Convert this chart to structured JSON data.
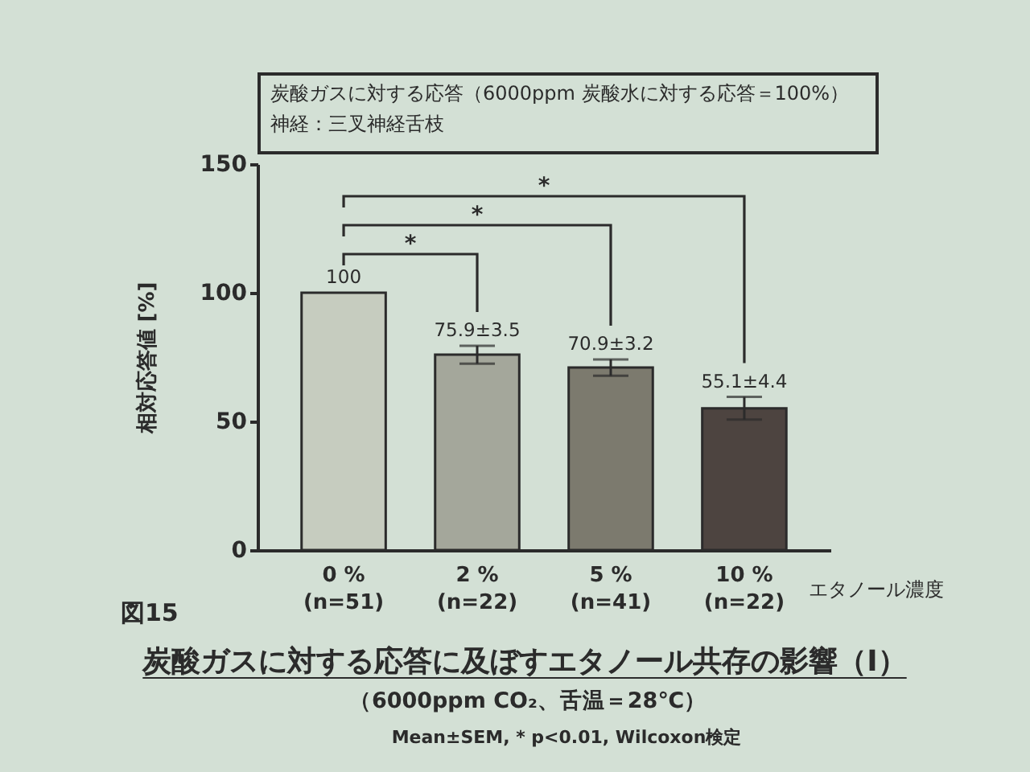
{
  "chart_data": {
    "type": "bar",
    "title": "炭酸ガスに対する応答に及ぼすエタノール共存の影響（I）",
    "subtitle": "（6000ppm CO₂、舌温＝28℃）",
    "xlabel": "エタノール濃度",
    "ylabel": "相対応答値 [%]",
    "categories": [
      "0 %\n(n=51)",
      "2 %\n(n=22)",
      "5 %\n(n=41)",
      "10 %\n(n=22)"
    ],
    "values": [
      100,
      75.9,
      70.9,
      55.1
    ],
    "errors": [
      null,
      3.5,
      3.2,
      4.4
    ],
    "value_labels": [
      "100",
      "75.9±3.5",
      "70.9±3.2",
      "55.1±4.4"
    ],
    "colors": [
      "#c6ccbf",
      "#a4a79b",
      "#7c7a6e",
      "#4d4440"
    ],
    "ylim": [
      0,
      150
    ],
    "yticks": [
      0,
      50,
      100,
      150
    ],
    "annotations": [
      "炭酸ガスに対する応答（6000ppm 炭酸水に対する応答＝100%）",
      "神経：三叉神経舌枝",
      "図15",
      "Mean±SEM, * p<0.01, Wilcoxon検定",
      "*",
      "*",
      "*"
    ]
  }
}
